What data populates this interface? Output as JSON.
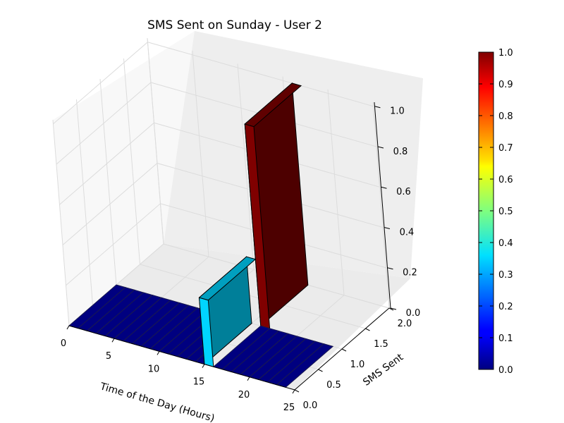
{
  "chart_data": {
    "type": "bar3d",
    "title": "SMS Sent on Sunday - User 2",
    "xlabel": "Time of the Day (Hours)",
    "ylabel": "SMS Sent",
    "zlabel": "",
    "xlim": [
      0,
      25
    ],
    "ylim": [
      0.0,
      2.0
    ],
    "zlim": [
      0.0,
      1.0
    ],
    "x_ticks": [
      "0",
      "5",
      "10",
      "15",
      "20",
      "25"
    ],
    "y_ticks": [
      "0.0",
      "0.5",
      "1.0",
      "1.5",
      "2.0"
    ],
    "z_ticks": [
      "0.0",
      "0.2",
      "0.4",
      "0.6",
      "0.8",
      "1.0"
    ],
    "grid": true,
    "colormap": "jet",
    "colorbar_ticks": [
      "0.0",
      "0.1",
      "0.2",
      "0.3",
      "0.4",
      "0.5",
      "0.6",
      "0.7",
      "0.8",
      "0.9",
      "1.0"
    ],
    "bars": [
      {
        "x_start": 0,
        "x_end": 15,
        "y_start": 0,
        "y_end": 1,
        "value": 0,
        "color": "#000080"
      },
      {
        "x_start": 15,
        "x_end": 16,
        "y_start": 0,
        "y_end": 1,
        "value": 0.33,
        "color": "#00d4ff"
      },
      {
        "x_start": 16,
        "x_end": 24,
        "y_start": 0,
        "y_end": 1,
        "value": 0,
        "color": "#000080"
      },
      {
        "x_start": 16,
        "x_end": 17,
        "y_start": 1,
        "y_end": 2,
        "value": 1.0,
        "color": "#800000"
      }
    ],
    "colors": {
      "low": "#000080",
      "mid": "#00d4ff",
      "high": "#800000",
      "pane": "#f2f2f2",
      "grid": "#e0e0e0"
    }
  }
}
